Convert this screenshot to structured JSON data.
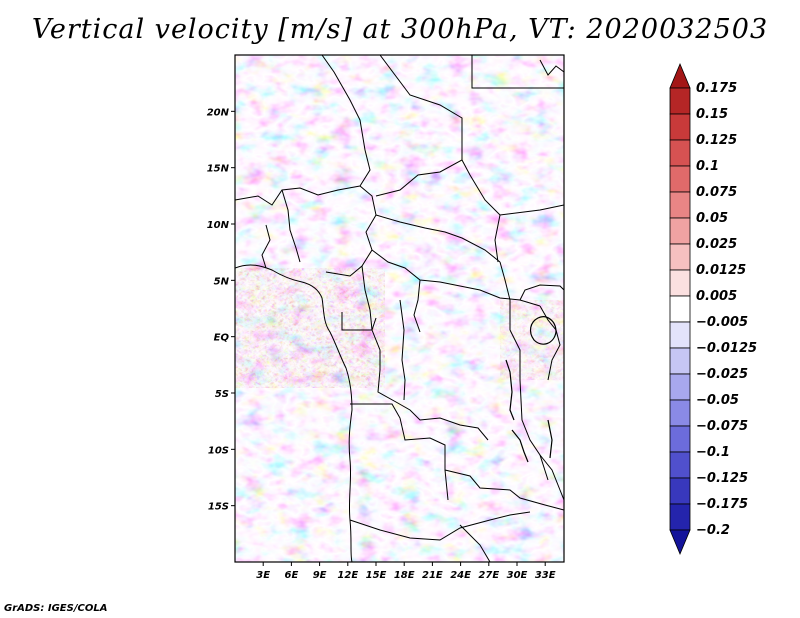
{
  "title": "Vertical velocity [m/s] at 300hPa, VT: 2020032503",
  "footer": "GrADS: IGES/COLA",
  "latitude_labels": [
    "20N",
    "15N",
    "10N",
    "5N",
    "EQ",
    "5S",
    "10S",
    "15S"
  ],
  "latitude_values": [
    20,
    15,
    10,
    5,
    0,
    -5,
    -10,
    -15
  ],
  "longitude_labels": [
    "3E",
    "6E",
    "9E",
    "12E",
    "15E",
    "18E",
    "21E",
    "24E",
    "27E",
    "30E",
    "33E"
  ],
  "longitude_values": [
    3,
    6,
    9,
    12,
    15,
    18,
    21,
    24,
    27,
    30,
    33
  ],
  "map_extent": {
    "lon_min": 0,
    "lon_max": 35,
    "lat_min": -20,
    "lat_max": 25
  },
  "colorbar": {
    "labels": [
      "0.175",
      "0.15",
      "0.125",
      "0.1",
      "0.075",
      "0.05",
      "0.025",
      "0.0125",
      "0.005",
      "−0.005",
      "−0.0125",
      "−0.025",
      "−0.05",
      "−0.075",
      "−0.1",
      "−0.125",
      "−0.175",
      "−0.2"
    ],
    "colors": [
      "#a31616",
      "#b52626",
      "#c83a3a",
      "#d65252",
      "#e06a6a",
      "#e98585",
      "#f0a2a2",
      "#f6c0c0",
      "#fbe0e0",
      "#ffffff",
      "#e3e3fb",
      "#c6c6f5",
      "#a8a8ee",
      "#8a8ae6",
      "#6c6cdb",
      "#5050cd",
      "#3838bd",
      "#2424ac",
      "#14149a"
    ]
  }
}
